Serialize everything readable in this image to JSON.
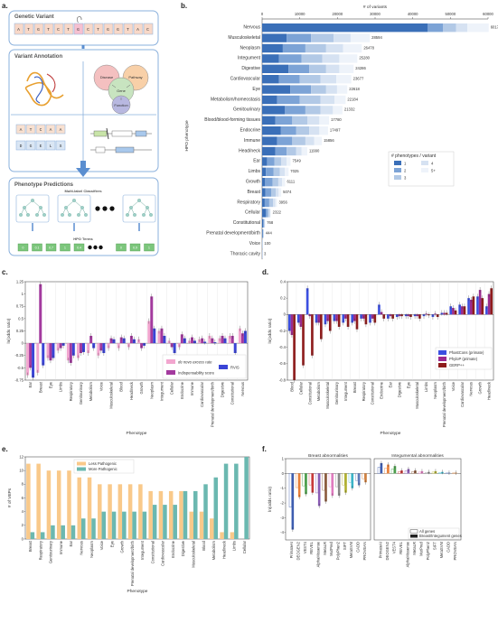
{
  "panels": {
    "a": {
      "letter": "a.",
      "genetic_variant_title": "Genetic Variant",
      "sequence": [
        "A",
        "T",
        "G",
        "T",
        "C",
        "T",
        "G",
        "C",
        "T",
        "G",
        "G",
        "T",
        "A",
        "C"
      ],
      "variant_annotation_title": "Variant Annotation",
      "venn": [
        "Disease",
        "Pathway",
        "Gene",
        "Function"
      ],
      "seq_grid_top": [
        "A",
        "T",
        "C",
        "A",
        "A"
      ],
      "seq_grid_bottom": [
        "D",
        "G",
        "E",
        "L",
        "S"
      ],
      "phenotype_predictions_title": "Phenotype Predictions",
      "multilabel_title": "Multi-label Classifiers",
      "hpo_terms_title": "HPO Terms",
      "hpo_terms": [
        "0",
        "0.1",
        "0.7",
        "1",
        "0.4",
        "",
        "",
        "0",
        "0.9",
        "1"
      ]
    },
    "b": {
      "letter": "b."
    },
    "c": {
      "letter": "c."
    },
    "d": {
      "letter": "d."
    },
    "e": {
      "letter": "e."
    },
    "f": {
      "letter": "f."
    }
  },
  "colors": {
    "blue_dark": "#3a6fb8",
    "blue_mid": "#7ca3d6",
    "blue_light": "#b2c9e6",
    "blue_lighter": "#d6e2f2",
    "blue_faint": "#eef3fa",
    "pink": "#f2a6cf",
    "magenta": "#a33a9e",
    "rvis_blue": "#3a44d6",
    "phast": "#3b4fe0",
    "phylop": "#9b2a8f",
    "gerp": "#8e1c1c",
    "orange": "#f9c98a",
    "teal": "#6bb8b0",
    "f_blue": "#3d5db0",
    "f_orange": "#e8803a",
    "f_green": "#4c9e4c",
    "f_red": "#c83a3a",
    "f_purple": "#8a5cb4",
    "f_brown": "#8a5a3c",
    "f_pink": "#e07cc0",
    "f_gray": "#888888",
    "f_olive": "#b0b030",
    "f_cyan": "#3ab4c8",
    "box_border": "#8ab0dc"
  },
  "chart_data": [
    {
      "id": "b",
      "type": "bar",
      "orientation": "horizontal-stacked",
      "title": "# of variants",
      "ylabel": "HPO phenotype",
      "xlim": [
        0,
        60000
      ],
      "xticks": [
        0,
        10000,
        20000,
        30000,
        40000,
        50000,
        60000
      ],
      "categories": [
        "Nervous",
        "Musculoskeletal",
        "Neoplasm",
        "Integument",
        "Digestive",
        "Cardiovascular",
        "Eye",
        "Metabolism/homeostasis",
        "Genitourinary",
        "Blood/blood-forming tissues",
        "Endocrine",
        "Immune",
        "Head/neck",
        "Ear",
        "Limbs",
        "Growth",
        "Breast",
        "Respiratory",
        "Cellular",
        "Constitutional",
        "Prenatal development/birth",
        "Voice",
        "Thoracic cavity"
      ],
      "totals": [
        60171,
        28594,
        26478,
        25280,
        24286,
        23677,
        22618,
        22184,
        21332,
        17780,
        17497,
        15856,
        11990,
        7549,
        7025,
        6111,
        5074,
        3956,
        2322,
        768,
        444,
        100,
        3
      ],
      "legend_title": "# phenotypes / variant",
      "legend": [
        "1",
        "2",
        "3",
        "4",
        "5+"
      ],
      "legend_position": "right",
      "series": [
        {
          "name": "1",
          "values": [
            44000,
            6500,
            5500,
            4500,
            7000,
            4500,
            7500,
            4000,
            6000,
            3500,
            5000,
            4000,
            3500,
            1300,
            1000,
            800,
            900,
            700,
            1000,
            300,
            150,
            50,
            1
          ]
        },
        {
          "name": "2",
          "values": [
            4000,
            6500,
            6000,
            6000,
            5500,
            5500,
            5500,
            6000,
            5500,
            4500,
            4000,
            4000,
            3000,
            2000,
            2000,
            2000,
            1500,
            1200,
            500,
            250,
            150,
            30,
            1
          ]
        },
        {
          "name": "3",
          "values": [
            3500,
            6000,
            5500,
            5500,
            4500,
            5500,
            4000,
            5500,
            4000,
            4000,
            3500,
            3500,
            2500,
            1800,
            1700,
            1500,
            1200,
            1000,
            400,
            120,
            80,
            10,
            1
          ]
        },
        {
          "name": "4",
          "values": [
            3000,
            4500,
            4500,
            4500,
            3500,
            4200,
            2900,
            3700,
            3300,
            3200,
            2700,
            2300,
            1500,
            1400,
            1300,
            1000,
            800,
            600,
            250,
            60,
            40,
            5,
            0
          ]
        },
        {
          "name": "5+",
          "values": [
            5671,
            5094,
            4978,
            4780,
            3786,
            3977,
            2718,
            2984,
            2532,
            2580,
            2297,
            2056,
            1490,
            1049,
            1025,
            811,
            674,
            456,
            172,
            38,
            24,
            5,
            0
          ]
        }
      ]
    },
    {
      "id": "c",
      "type": "bar",
      "xlabel": "Phenotype",
      "ylabel": "ln(odds ratio)",
      "ylim": [
        -0.75,
        1.25
      ],
      "yticks": [
        -0.75,
        -0.5,
        -0.25,
        0,
        0.25,
        0.5,
        0.75,
        1,
        1.25
      ],
      "categories": [
        "Ear",
        "Breast",
        "Eye",
        "Limbs",
        "Respiratory",
        "Genitourinary",
        "Metabolism",
        "Voice",
        "Musculoskeletal",
        "Blood",
        "Head/neck",
        "Growth",
        "Neoplasm",
        "Integument",
        "Cellular",
        "Endocrine",
        "Immune",
        "Cardiovascular",
        "Prenatal development/birth",
        "Digestive",
        "Constitutional",
        "Nervous"
      ],
      "legend": [
        "de novo excess rate",
        "Indispensability score",
        "RVIS"
      ],
      "legend_position": "bottom-right",
      "series": [
        {
          "name": "de novo excess rate",
          "values": [
            -0.65,
            -0.6,
            -0.3,
            -0.15,
            -0.35,
            -0.3,
            -0.2,
            -0.25,
            -0.1,
            -0.1,
            -0.08,
            0.08,
            0.45,
            0.25,
            0.05,
            -0.08,
            0.05,
            0.08,
            0.15,
            0.1,
            0.15,
            0.3
          ]
        },
        {
          "name": "Indispensability score",
          "values": [
            -0.5,
            1.2,
            -0.35,
            -0.1,
            -0.4,
            -0.2,
            0.15,
            -0.15,
            0.1,
            0.12,
            0.15,
            -0.1,
            0.95,
            0.3,
            -0.08,
            0.18,
            0.12,
            0.1,
            0.1,
            0.15,
            0.15,
            0.2
          ]
        },
        {
          "name": "RVIS",
          "values": [
            -0.7,
            -0.45,
            -0.3,
            -0.05,
            -0.25,
            -0.18,
            -0.1,
            -0.2,
            0.08,
            0.1,
            0.08,
            -0.05,
            0.3,
            0.15,
            -0.2,
            0.1,
            0.05,
            0.03,
            0.02,
            0.1,
            -0.2,
            0.25
          ]
        }
      ]
    },
    {
      "id": "d",
      "type": "bar",
      "xlabel": "Phenotype",
      "ylabel": "ln(odds ratio)",
      "ylim": [
        -0.8,
        0.4
      ],
      "yticks": [
        -0.8,
        -0.6,
        -0.4,
        -0.2,
        0,
        0.2,
        0.4
      ],
      "categories": [
        "Blood",
        "Cellular",
        "Constitutional",
        "Metabolism",
        "Musculoskeletal",
        "Genitourinary",
        "Integument",
        "Breast",
        "Respiratory",
        "Constitutional",
        "Endocrine",
        "Ear",
        "Digestive",
        "Eye",
        "Musculoskeletal",
        "Limbs",
        "Neoplasm",
        "Prenatal development/birth",
        "Voice",
        "Cardiovascular",
        "Nervous",
        "Growth",
        "Head/neck"
      ],
      "legend": [
        "PhastCons (primate)",
        "PhyloP (primate)",
        "GERP++"
      ],
      "legend_position": "bottom-right",
      "series": [
        {
          "name": "PhastCons (primate)",
          "values": [
            -0.2,
            -0.1,
            0.32,
            -0.1,
            -0.12,
            -0.08,
            -0.1,
            -0.1,
            -0.05,
            -0.1,
            0.12,
            -0.05,
            -0.03,
            -0.02,
            -0.02,
            -0.02,
            -0.03,
            0.02,
            0.1,
            0.12,
            0.2,
            0.22,
            0.1
          ]
        },
        {
          "name": "PhyloP (primate)",
          "values": [
            -0.25,
            -0.15,
            -0.02,
            -0.1,
            -0.08,
            -0.08,
            -0.05,
            -0.08,
            -0.05,
            -0.05,
            0.03,
            -0.02,
            -0.02,
            -0.02,
            -0.02,
            0.01,
            0.01,
            0.02,
            0.08,
            0.1,
            0.18,
            0.3,
            0.25
          ]
        },
        {
          "name": "GERP++",
          "values": [
            -0.8,
            -0.62,
            -0.5,
            -0.3,
            -0.2,
            -0.15,
            -0.15,
            -0.18,
            -0.12,
            -0.1,
            -0.05,
            -0.05,
            -0.02,
            -0.03,
            -0.05,
            -0.01,
            -0.03,
            0.02,
            0.05,
            0.1,
            0.22,
            0.2,
            0.32
          ]
        }
      ]
    },
    {
      "id": "e",
      "type": "bar",
      "xlabel": "Phenotype",
      "ylabel": "# of VEPs",
      "ylim": [
        0,
        12
      ],
      "yticks": [
        0,
        2,
        4,
        6,
        8,
        10,
        12
      ],
      "categories": [
        "Breast",
        "Respiratory",
        "Genitourinary",
        "Immune",
        "Ear",
        "Nervous",
        "Neoplasm",
        "Voice",
        "Eye",
        "Growth",
        "Prenatal development/birth",
        "Integument",
        "Constitutional",
        "Cardiovascular",
        "Endocrine",
        "Digestive",
        "Musculoskeletal",
        "Blood",
        "Metabolism",
        "Head/neck",
        "Limbs",
        "Cellular"
      ],
      "legend": [
        "Less Pathogenic",
        "More Pathogenic"
      ],
      "legend_position": "top-left",
      "series": [
        {
          "name": "Less Pathogenic",
          "values": [
            11,
            11,
            10,
            10,
            10,
            9,
            9,
            8,
            8,
            8,
            8,
            8,
            7,
            7,
            7,
            7,
            4,
            4,
            3,
            1,
            1,
            0
          ]
        },
        {
          "name": "More Pathogenic",
          "values": [
            1,
            1,
            2,
            2,
            2,
            3,
            3,
            4,
            4,
            4,
            4,
            4,
            5,
            5,
            5,
            7,
            7,
            8,
            9,
            11,
            11,
            12
          ]
        }
      ]
    },
    {
      "id": "f",
      "type": "bar",
      "ylabel": "ln(odds ratio)",
      "ylim": [
        -4.5,
        1
      ],
      "yticks": [
        -4,
        -3,
        -2,
        -1,
        0,
        1
      ],
      "subplots": [
        {
          "title": "Breast abnormalities",
          "categories": [
            "PrimateAI",
            "DEOGEN2",
            "VEST4",
            "REVEL",
            "AlphaMissense",
            "MetaLR",
            "MutPred",
            "PolyPhen2",
            "SIFT",
            "MetaSVM",
            "CADD",
            "PROVEAN"
          ],
          "values": [
            -3.8,
            -1.6,
            -1.4,
            -1.3,
            -2.2,
            -1.9,
            -1.5,
            -1.5,
            -1.3,
            -1.0,
            -0.8,
            -0.6
          ]
        },
        {
          "title": "Integumental abnormalities",
          "categories": [
            "PrimateAI",
            "DEOGEN2",
            "VEST4",
            "REVEL",
            "AlphaMissense",
            "MetaLR",
            "MutPred",
            "PolyPhen2",
            "SIFT",
            "MetaSVM",
            "CADD",
            "PROVEAN"
          ],
          "values": [
            0.7,
            0.6,
            0.5,
            0.2,
            0.3,
            0.2,
            0.15,
            0.1,
            0.15,
            0.1,
            0.05,
            0.05
          ]
        }
      ],
      "legend": [
        "All genes",
        "Breast/Integument genes"
      ],
      "legend_position": "bottom-right"
    }
  ]
}
